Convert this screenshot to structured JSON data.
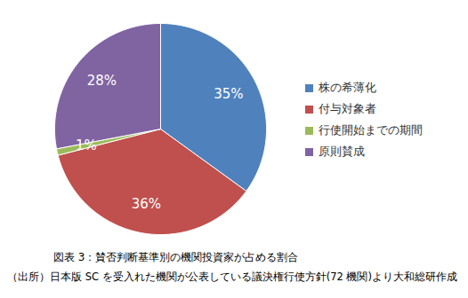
{
  "chart_data": {
    "type": "pie",
    "title": "図表 3：賛否判断基準別の機関投資家が占める割合",
    "note": "（出所）日本版 SC を受入れた機関が公表している議決権行使方針(72 機関)より大和総研作成",
    "categories": [
      "株の希薄化",
      "付与対象者",
      "行使開始までの期間",
      "原則賛成"
    ],
    "values": [
      35,
      36,
      1,
      28
    ],
    "value_labels": [
      "35%",
      "36%",
      "1%",
      "28%"
    ],
    "colors": [
      "#4f81bd",
      "#c0504d",
      "#9bbb59",
      "#8064a2"
    ],
    "data_labels": true,
    "legend": "right"
  }
}
